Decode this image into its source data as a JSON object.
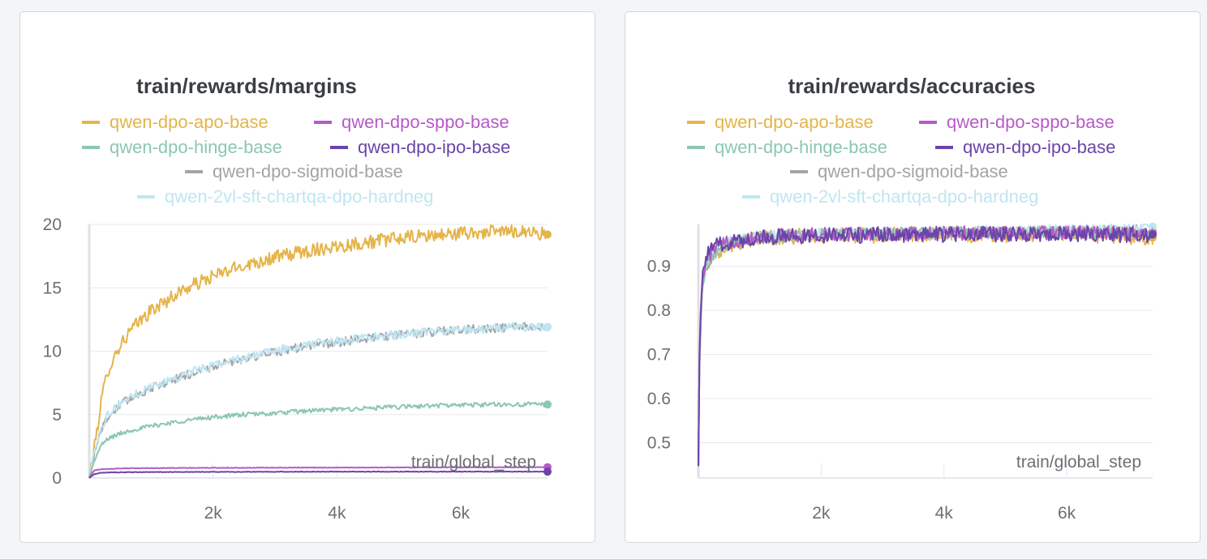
{
  "colors": {
    "apo": "#e5b44a",
    "sppo": "#b55bc7",
    "hinge": "#8cc7b0",
    "ipo": "#6a45a8",
    "sigmoid": "#a3a4a6",
    "hardneg": "#bfe6f2"
  },
  "chart_data": [
    {
      "type": "line",
      "title": "train/rewards/margins",
      "xlabel": "train/global_step",
      "ylabel": "",
      "xlim": [
        0,
        7400
      ],
      "ylim": [
        0,
        20
      ],
      "x_ticks": [
        {
          "v": 2000,
          "label": "2k"
        },
        {
          "v": 4000,
          "label": "4k"
        },
        {
          "v": 6000,
          "label": "6k"
        }
      ],
      "y_ticks": [
        {
          "v": 0,
          "label": "0"
        },
        {
          "v": 5,
          "label": "5"
        },
        {
          "v": 10,
          "label": "10"
        },
        {
          "v": 15,
          "label": "15"
        },
        {
          "v": 20,
          "label": "20"
        }
      ],
      "grid": true,
      "legend_position": "top-center",
      "series": [
        {
          "name": "qwen-dpo-apo-base",
          "color_key": "apo",
          "noise": 0.55,
          "x": [
            0,
            100,
            200,
            300,
            500,
            700,
            1000,
            1500,
            2000,
            2500,
            3000,
            3500,
            4000,
            4500,
            5000,
            5500,
            6000,
            6500,
            7000,
            7400
          ],
          "y": [
            0,
            3.0,
            6.2,
            8.5,
            10.5,
            11.8,
            13.2,
            14.8,
            15.9,
            16.8,
            17.4,
            17.9,
            18.3,
            18.6,
            18.9,
            19.1,
            19.3,
            19.4,
            19.5,
            19.2
          ]
        },
        {
          "name": "qwen-dpo-sppo-base",
          "color_key": "sppo",
          "noise": 0.02,
          "x": [
            0,
            80,
            200,
            500,
            1000,
            2000,
            4000,
            6000,
            7400
          ],
          "y": [
            0,
            0.6,
            0.7,
            0.75,
            0.78,
            0.8,
            0.82,
            0.84,
            0.85
          ]
        },
        {
          "name": "qwen-dpo-hinge-base",
          "color_key": "hinge",
          "noise": 0.18,
          "x": [
            0,
            100,
            200,
            300,
            500,
            700,
            1000,
            1500,
            2000,
            2500,
            3000,
            3500,
            4000,
            4500,
            5000,
            5500,
            6000,
            6500,
            7000,
            7400
          ],
          "y": [
            0,
            1.6,
            2.6,
            3.1,
            3.5,
            3.8,
            4.1,
            4.5,
            4.8,
            5.0,
            5.1,
            5.3,
            5.4,
            5.5,
            5.6,
            5.7,
            5.75,
            5.8,
            5.8,
            5.8
          ]
        },
        {
          "name": "qwen-dpo-ipo-base",
          "color_key": "ipo",
          "noise": 0.02,
          "x": [
            0,
            80,
            200,
            500,
            1000,
            2000,
            4000,
            6000,
            7400
          ],
          "y": [
            0,
            0.3,
            0.42,
            0.45,
            0.47,
            0.48,
            0.5,
            0.5,
            0.5
          ]
        },
        {
          "name": "qwen-dpo-sigmoid-base",
          "color_key": "sigmoid",
          "noise": 0.35,
          "x": [
            0,
            100,
            200,
            300,
            500,
            700,
            1000,
            1500,
            2000,
            2500,
            3000,
            3500,
            4000,
            4500,
            5000,
            5500,
            6000,
            6500,
            7000,
            7400
          ],
          "y": [
            0,
            2.4,
            3.9,
            4.8,
            5.8,
            6.4,
            7.1,
            8.0,
            8.8,
            9.4,
            9.9,
            10.4,
            10.7,
            11.0,
            11.3,
            11.5,
            11.7,
            11.8,
            11.9,
            11.9
          ]
        },
        {
          "name": "qwen-2vl-sft-chartqa-dpo-hardneg",
          "color_key": "hardneg",
          "noise": 0.35,
          "x": [
            0,
            100,
            200,
            300,
            500,
            700,
            1000,
            1500,
            2000,
            2500,
            3000,
            3500,
            4000,
            4500,
            5000,
            5500,
            6000,
            6500,
            7000,
            7400
          ],
          "y": [
            0,
            2.6,
            4.1,
            5.0,
            5.9,
            6.5,
            7.2,
            8.1,
            8.9,
            9.5,
            10.0,
            10.5,
            10.8,
            11.1,
            11.3,
            11.5,
            11.7,
            11.8,
            11.9,
            11.9
          ]
        }
      ]
    },
    {
      "type": "line",
      "title": "train/rewards/accuracies",
      "xlabel": "train/global_step",
      "ylabel": "",
      "xlim": [
        0,
        7400
      ],
      "ylim": [
        0.42,
        0.995
      ],
      "x_ticks": [
        {
          "v": 2000,
          "label": "2k"
        },
        {
          "v": 4000,
          "label": "4k"
        },
        {
          "v": 6000,
          "label": "6k"
        }
      ],
      "y_ticks": [
        {
          "v": 0.5,
          "label": "0.5"
        },
        {
          "v": 0.6,
          "label": "0.6"
        },
        {
          "v": 0.7,
          "label": "0.7"
        },
        {
          "v": 0.8,
          "label": "0.8"
        },
        {
          "v": 0.9,
          "label": "0.9"
        }
      ],
      "grid": true,
      "legend_position": "top-center",
      "series": [
        {
          "name": "qwen-dpo-apo-base",
          "color_key": "apo",
          "noise": 0.018,
          "x": [
            0,
            20,
            60,
            120,
            250,
            500,
            1000,
            2000,
            4000,
            6000,
            7400
          ],
          "y": [
            0.45,
            0.7,
            0.85,
            0.9,
            0.93,
            0.95,
            0.965,
            0.97,
            0.972,
            0.973,
            0.965
          ]
        },
        {
          "name": "qwen-dpo-sppo-base",
          "color_key": "sppo",
          "noise": 0.016,
          "x": [
            0,
            20,
            60,
            120,
            250,
            500,
            1000,
            2000,
            4000,
            6000,
            7400
          ],
          "y": [
            0.45,
            0.72,
            0.86,
            0.91,
            0.94,
            0.955,
            0.968,
            0.972,
            0.975,
            0.976,
            0.975
          ]
        },
        {
          "name": "qwen-dpo-hinge-base",
          "color_key": "hinge",
          "noise": 0.014,
          "x": [
            0,
            20,
            60,
            120,
            250,
            500,
            1000,
            2000,
            4000,
            6000,
            7400
          ],
          "y": [
            0.45,
            0.7,
            0.85,
            0.9,
            0.93,
            0.95,
            0.965,
            0.972,
            0.975,
            0.977,
            0.975
          ]
        },
        {
          "name": "qwen-dpo-ipo-base",
          "color_key": "ipo",
          "noise": 0.018,
          "x": [
            0,
            20,
            60,
            120,
            250,
            500,
            1000,
            2000,
            4000,
            6000,
            7400
          ],
          "y": [
            0.45,
            0.74,
            0.87,
            0.92,
            0.945,
            0.955,
            0.966,
            0.97,
            0.972,
            0.974,
            0.972
          ]
        },
        {
          "name": "qwen-dpo-sigmoid-base",
          "color_key": "sigmoid",
          "noise": 0.014,
          "x": [
            0,
            20,
            60,
            120,
            250,
            500,
            1000,
            2000,
            4000,
            6000,
            7400
          ],
          "y": [
            0.45,
            0.7,
            0.85,
            0.9,
            0.93,
            0.95,
            0.965,
            0.972,
            0.976,
            0.978,
            0.98
          ]
        },
        {
          "name": "qwen-2vl-sft-chartqa-dpo-hardneg",
          "color_key": "hardneg",
          "noise": 0.012,
          "x": [
            0,
            20,
            60,
            120,
            250,
            500,
            1000,
            2000,
            4000,
            6000,
            7400
          ],
          "y": [
            0.45,
            0.7,
            0.85,
            0.9,
            0.935,
            0.955,
            0.968,
            0.975,
            0.98,
            0.983,
            0.99
          ]
        }
      ]
    }
  ]
}
